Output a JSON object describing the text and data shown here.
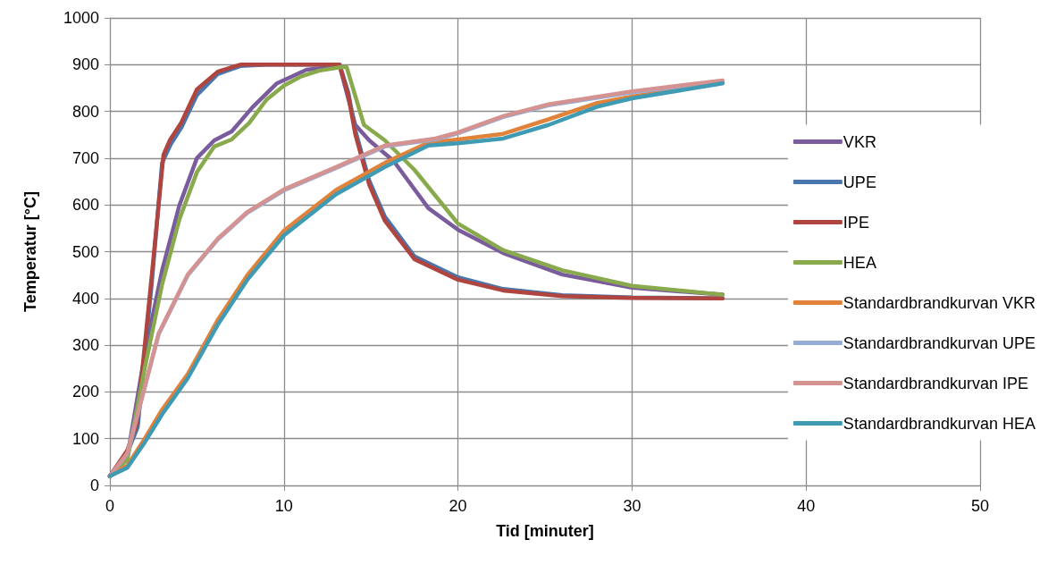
{
  "chart_data": {
    "type": "line",
    "xlabel": "Tid [minuter]",
    "ylabel": "Temperatur [°C]",
    "xlim": [
      0,
      50
    ],
    "xticks": [
      0,
      10,
      20,
      30,
      40,
      50
    ],
    "ylim": [
      0,
      1000
    ],
    "yticks": [
      0,
      100,
      200,
      300,
      400,
      500,
      600,
      700,
      800,
      900,
      1000
    ],
    "grid": true,
    "legend": "right",
    "marker": "none",
    "line_style": "solid",
    "series": [
      {
        "name": "VKR",
        "color": "#7a5c9c",
        "x": [
          0,
          1,
          2,
          3,
          4,
          5,
          6,
          7,
          8.2,
          9.6,
          11.3,
          13.2,
          14.1,
          14.9,
          16.3,
          18.3,
          20,
          22.6,
          26,
          30,
          35.2
        ],
        "values": [
          20,
          60,
          280,
          460,
          600,
          700,
          738,
          757,
          809,
          860,
          889,
          897,
          771,
          738,
          694,
          593,
          547,
          497,
          451,
          423,
          408
        ]
      },
      {
        "name": "UPE",
        "color": "#4a76ae",
        "x": [
          0,
          1,
          1.6,
          2.4,
          3,
          3.5,
          4.1,
          5,
          6.2,
          7.5,
          9,
          13.2,
          13.7,
          14.1,
          14.9,
          15.8,
          17.5,
          20,
          22.6,
          26,
          30,
          35.2
        ],
        "values": [
          20,
          70,
          125,
          430,
          690,
          730,
          765,
          835,
          880,
          897,
          900,
          900,
          840,
          760,
          652,
          575,
          490,
          445,
          420,
          407,
          402,
          400
        ]
      },
      {
        "name": "IPE",
        "color": "#b0443f",
        "x": [
          0,
          1,
          1.56,
          2.41,
          3.08,
          3.44,
          4.1,
          5,
          6.2,
          7.5,
          9,
          13.2,
          13.7,
          14.1,
          14.9,
          15.8,
          17.5,
          20,
          22.6,
          26,
          30,
          35.2
        ],
        "values": [
          20,
          75,
          134,
          451,
          707,
          738,
          776,
          847,
          885,
          900,
          900,
          900,
          834,
          751,
          643,
          566,
          484,
          440,
          417,
          405,
          401,
          400
        ]
      },
      {
        "name": "HEA",
        "color": "#88a94c",
        "x": [
          0,
          1,
          2,
          3,
          4,
          5,
          6,
          7,
          8,
          9,
          10,
          11,
          12,
          13.3,
          13.6,
          14.6,
          15.8,
          17.5,
          20,
          22.6,
          26,
          30,
          35.2
        ],
        "values": [
          20,
          55,
          250,
          430,
          570,
          670,
          725,
          740,
          775,
          825,
          855,
          875,
          887,
          895,
          895,
          771,
          738,
          675,
          560,
          503,
          460,
          427,
          408
        ]
      },
      {
        "name": "Standardbrandkurvan VKR",
        "color": "#e0823a",
        "x": [
          0,
          1,
          2,
          3,
          4.47,
          6.2,
          7.9,
          10,
          13,
          15.8,
          18.3,
          20,
          22.6,
          25.2,
          28,
          30,
          35.2
        ],
        "values": [
          20,
          42,
          100,
          162,
          238,
          354,
          450,
          545,
          632,
          690,
          733,
          740,
          752,
          783,
          818,
          832,
          862
        ]
      },
      {
        "name": "Standardbrandkurvan UPE",
        "color": "#96acd6",
        "x": [
          0,
          1,
          2,
          2.8,
          4.47,
          6.2,
          7.9,
          10,
          13,
          15.8,
          18.7,
          20,
          22.6,
          25.2,
          30,
          35.2
        ],
        "values": [
          20,
          67,
          210,
          323,
          449,
          526,
          583,
          631,
          679,
          725,
          740,
          753,
          788,
          813,
          841,
          864
        ]
      },
      {
        "name": "Standardbrandkurvan IPE",
        "color": "#d49290",
        "x": [
          0,
          1,
          2,
          2.8,
          4.47,
          6.2,
          7.9,
          10,
          13,
          15.8,
          18.7,
          20,
          22.6,
          25.2,
          30,
          35.2
        ],
        "values": [
          20,
          69,
          210,
          325,
          451,
          528,
          585,
          633,
          681,
          727,
          742,
          755,
          790,
          815,
          843,
          866
        ]
      },
      {
        "name": "Standardbrandkurvan HEA",
        "color": "#3f9bb4",
        "x": [
          0,
          1,
          2,
          3,
          4.47,
          6.2,
          7.9,
          10,
          13,
          15.8,
          18.3,
          20,
          22.6,
          25.2,
          28,
          30,
          35.2
        ],
        "values": [
          20,
          38,
          92,
          152,
          229,
          344,
          440,
          535,
          623,
          681,
          727,
          732,
          742,
          771,
          810,
          828,
          860
        ]
      }
    ]
  }
}
